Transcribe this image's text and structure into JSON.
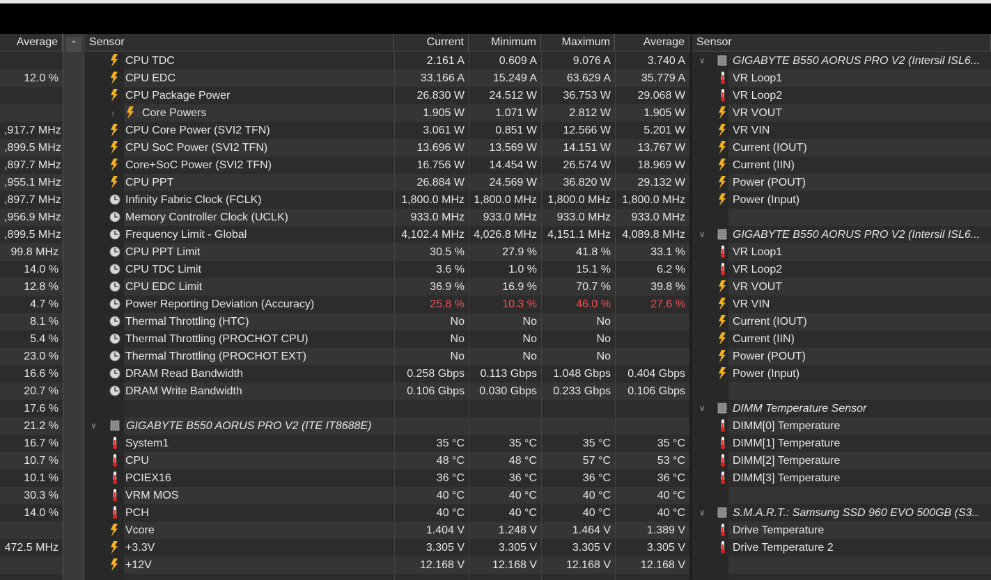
{
  "left": {
    "header": "Average",
    "values": [
      null,
      "12.0 %",
      null,
      null,
      ",917.7 MHz",
      ",899.5 MHz",
      ",897.7 MHz",
      ",955.1 MHz",
      ",897.7 MHz",
      ",956.9 MHz",
      ",899.5 MHz",
      "99.8 MHz",
      "14.0 %",
      "12.8 %",
      "4.7 %",
      "8.1 %",
      "5.4 %",
      "23.0 %",
      "16.6 %",
      "20.7 %",
      "17.6 %",
      "21.2 %",
      "16.7 %",
      "10.7 %",
      "10.1 %",
      "30.3 %",
      "14.0 %",
      null,
      "472.5 MHz",
      null
    ]
  },
  "middle": {
    "headers": [
      "Sensor",
      "Current",
      "Minimum",
      "Maximum",
      "Average"
    ],
    "rows": [
      {
        "icon": "bolt",
        "label": "CPU TDC",
        "values": [
          "2.161 A",
          "0.609 A",
          "9.076 A",
          "3.740 A"
        ]
      },
      {
        "icon": "bolt",
        "label": "CPU EDC",
        "values": [
          "33.166 A",
          "15.249 A",
          "63.629 A",
          "35.779 A"
        ]
      },
      {
        "icon": "bolt",
        "label": "CPU Package Power",
        "values": [
          "26.830 W",
          "24.512 W",
          "36.753 W",
          "29.068 W"
        ]
      },
      {
        "icon": "bolt",
        "label": "Core Powers",
        "indent": true,
        "values": [
          "1.905 W",
          "1.071 W",
          "2.812 W",
          "1.905 W"
        ]
      },
      {
        "icon": "bolt",
        "label": "CPU Core Power (SVI2 TFN)",
        "values": [
          "3.061 W",
          "0.851 W",
          "12.566 W",
          "5.201 W"
        ]
      },
      {
        "icon": "bolt",
        "label": "CPU SoC Power (SVI2 TFN)",
        "values": [
          "13.696 W",
          "13.569 W",
          "14.151 W",
          "13.767 W"
        ]
      },
      {
        "icon": "bolt",
        "label": "Core+SoC Power (SVI2 TFN)",
        "values": [
          "16.756 W",
          "14.454 W",
          "26.574 W",
          "18.969 W"
        ]
      },
      {
        "icon": "bolt",
        "label": "CPU PPT",
        "values": [
          "26.884 W",
          "24.569 W",
          "36.820 W",
          "29.132 W"
        ]
      },
      {
        "icon": "clock",
        "label": "Infinity Fabric Clock (FCLK)",
        "values": [
          "1,800.0 MHz",
          "1,800.0 MHz",
          "1,800.0 MHz",
          "1,800.0 MHz"
        ]
      },
      {
        "icon": "clock",
        "label": "Memory Controller Clock (UCLK)",
        "values": [
          "933.0 MHz",
          "933.0 MHz",
          "933.0 MHz",
          "933.0 MHz"
        ]
      },
      {
        "icon": "clock",
        "label": "Frequency Limit - Global",
        "values": [
          "4,102.4 MHz",
          "4,026.8 MHz",
          "4,151.1 MHz",
          "4,089.8 MHz"
        ]
      },
      {
        "icon": "clock",
        "label": "CPU PPT Limit",
        "values": [
          "30.5 %",
          "27.9 %",
          "41.8 %",
          "33.1 %"
        ]
      },
      {
        "icon": "clock",
        "label": "CPU TDC Limit",
        "values": [
          "3.6 %",
          "1.0 %",
          "15.1 %",
          "6.2 %"
        ]
      },
      {
        "icon": "clock",
        "label": "CPU EDC Limit",
        "values": [
          "36.9 %",
          "16.9 %",
          "70.7 %",
          "39.8 %"
        ]
      },
      {
        "icon": "clock",
        "label": "Power Reporting Deviation (Accuracy)",
        "color": "#f05050",
        "values": [
          "25.8 %",
          "10.3 %",
          "46.0 %",
          "27.6 %"
        ]
      },
      {
        "icon": "clock",
        "label": "Thermal Throttling (HTC)",
        "values": [
          "No",
          "No",
          "No",
          null
        ]
      },
      {
        "icon": "clock",
        "label": "Thermal Throttling (PROCHOT CPU)",
        "values": [
          "No",
          "No",
          "No",
          null
        ]
      },
      {
        "icon": "clock",
        "label": "Thermal Throttling (PROCHOT EXT)",
        "values": [
          "No",
          "No",
          "No",
          null
        ]
      },
      {
        "icon": "clock",
        "label": "DRAM Read Bandwidth",
        "values": [
          "0.258 Gbps",
          "0.113 Gbps",
          "1.048 Gbps",
          "0.404 Gbps"
        ]
      },
      {
        "icon": "clock",
        "label": "DRAM Write Bandwidth",
        "values": [
          "0.106 Gbps",
          "0.030 Gbps",
          "0.233 Gbps",
          "0.106 Gbps"
        ]
      },
      null,
      {
        "icon": "chip",
        "group": true,
        "label": "GIGABYTE B550 AORUS PRO V2 (ITE IT8688E)"
      },
      {
        "icon": "temp",
        "label": "System1",
        "values": [
          "35 °C",
          "35 °C",
          "35 °C",
          "35 °C"
        ]
      },
      {
        "icon": "temp",
        "label": "CPU",
        "values": [
          "48 °C",
          "48 °C",
          "57 °C",
          "53 °C"
        ]
      },
      {
        "icon": "temp",
        "label": "PCIEX16",
        "values": [
          "36 °C",
          "36 °C",
          "36 °C",
          "36 °C"
        ]
      },
      {
        "icon": "temp",
        "label": "VRM MOS",
        "values": [
          "40 °C",
          "40 °C",
          "40 °C",
          "40 °C"
        ]
      },
      {
        "icon": "temp",
        "label": "PCH",
        "values": [
          "40 °C",
          "40 °C",
          "40 °C",
          "40 °C"
        ]
      },
      {
        "icon": "bolt",
        "label": "Vcore",
        "values": [
          "1.404 V",
          "1.248 V",
          "1.464 V",
          "1.389 V"
        ]
      },
      {
        "icon": "bolt",
        "label": "+3.3V",
        "values": [
          "3.305 V",
          "3.305 V",
          "3.305 V",
          "3.305 V"
        ]
      },
      {
        "icon": "bolt",
        "label": "+12V",
        "values": [
          "12.168 V",
          "12.168 V",
          "12.168 V",
          "12.168 V"
        ]
      }
    ]
  },
  "right": {
    "header": "Sensor",
    "rows": [
      {
        "icon": "chip",
        "group": true,
        "label": "GIGABYTE B550 AORUS PRO V2 (Intersil ISL6..."
      },
      {
        "icon": "temp",
        "label": "VR Loop1"
      },
      {
        "icon": "temp",
        "label": "VR Loop2"
      },
      {
        "icon": "bolt",
        "label": "VR VOUT"
      },
      {
        "icon": "bolt",
        "label": "VR VIN"
      },
      {
        "icon": "bolt",
        "label": "Current (IOUT)"
      },
      {
        "icon": "bolt",
        "label": "Current (IIN)"
      },
      {
        "icon": "bolt",
        "label": "Power (POUT)"
      },
      {
        "icon": "bolt",
        "label": "Power (Input)"
      },
      null,
      {
        "icon": "chip",
        "group": true,
        "label": "GIGABYTE B550 AORUS PRO V2 (Intersil ISL6..."
      },
      {
        "icon": "temp",
        "label": "VR Loop1"
      },
      {
        "icon": "temp",
        "label": "VR Loop2"
      },
      {
        "icon": "bolt",
        "label": "VR VOUT"
      },
      {
        "icon": "bolt",
        "label": "VR VIN"
      },
      {
        "icon": "bolt",
        "label": "Current (IOUT)"
      },
      {
        "icon": "bolt",
        "label": "Current (IIN)"
      },
      {
        "icon": "bolt",
        "label": "Power (POUT)"
      },
      {
        "icon": "bolt",
        "label": "Power (Input)"
      },
      null,
      {
        "icon": "chip",
        "group": true,
        "label": "DIMM Temperature Sensor"
      },
      {
        "icon": "temp",
        "label": "DIMM[0] Temperature"
      },
      {
        "icon": "temp",
        "label": "DIMM[1] Temperature"
      },
      {
        "icon": "temp",
        "label": "DIMM[2] Temperature"
      },
      {
        "icon": "temp",
        "label": "DIMM[3] Temperature"
      },
      null,
      {
        "icon": "chip",
        "group": true,
        "label": "S.M.A.R.T.: Samsung SSD 960 EVO 500GB (S3..."
      },
      {
        "icon": "temp",
        "label": "Drive Temperature"
      },
      {
        "icon": "temp",
        "label": "Drive Temperature 2"
      },
      null
    ]
  }
}
